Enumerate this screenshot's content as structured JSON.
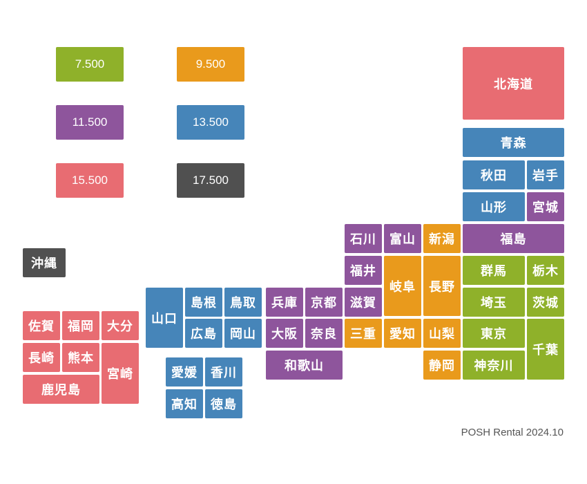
{
  "palette": {
    "green": "#8fb12a",
    "orange": "#e99a1c",
    "purple": "#8e559c",
    "blue": "#4685b9",
    "red": "#e86c72",
    "dark": "#505050"
  },
  "legend": [
    {
      "label": "7.500",
      "color": "green"
    },
    {
      "label": "9.500",
      "color": "orange"
    },
    {
      "label": "11.500",
      "color": "purple"
    },
    {
      "label": "13.500",
      "color": "blue"
    },
    {
      "label": "15.500",
      "color": "red"
    },
    {
      "label": "17.500",
      "color": "dark"
    }
  ],
  "prefectures": [
    {
      "name": "北海道",
      "color": "red"
    },
    {
      "name": "青森",
      "color": "blue"
    },
    {
      "name": "秋田",
      "color": "blue"
    },
    {
      "name": "岩手",
      "color": "blue"
    },
    {
      "name": "山形",
      "color": "blue"
    },
    {
      "name": "宮城",
      "color": "purple"
    },
    {
      "name": "石川",
      "color": "purple"
    },
    {
      "name": "富山",
      "color": "purple"
    },
    {
      "name": "新潟",
      "color": "orange"
    },
    {
      "name": "福島",
      "color": "purple"
    },
    {
      "name": "福井",
      "color": "purple"
    },
    {
      "name": "岐阜",
      "color": "orange"
    },
    {
      "name": "長野",
      "color": "orange"
    },
    {
      "name": "群馬",
      "color": "green"
    },
    {
      "name": "栃木",
      "color": "green"
    },
    {
      "name": "山口",
      "color": "blue"
    },
    {
      "name": "島根",
      "color": "blue"
    },
    {
      "name": "鳥取",
      "color": "blue"
    },
    {
      "name": "兵庫",
      "color": "purple"
    },
    {
      "name": "京都",
      "color": "purple"
    },
    {
      "name": "滋賀",
      "color": "purple"
    },
    {
      "name": "埼玉",
      "color": "green"
    },
    {
      "name": "茨城",
      "color": "green"
    },
    {
      "name": "広島",
      "color": "blue"
    },
    {
      "name": "岡山",
      "color": "blue"
    },
    {
      "name": "大阪",
      "color": "purple"
    },
    {
      "name": "奈良",
      "color": "purple"
    },
    {
      "name": "三重",
      "color": "orange"
    },
    {
      "name": "愛知",
      "color": "orange"
    },
    {
      "name": "山梨",
      "color": "orange"
    },
    {
      "name": "東京",
      "color": "green"
    },
    {
      "name": "千葉",
      "color": "green"
    },
    {
      "name": "和歌山",
      "color": "purple"
    },
    {
      "name": "静岡",
      "color": "orange"
    },
    {
      "name": "神奈川",
      "color": "green"
    },
    {
      "name": "愛媛",
      "color": "blue"
    },
    {
      "name": "香川",
      "color": "blue"
    },
    {
      "name": "高知",
      "color": "blue"
    },
    {
      "name": "徳島",
      "color": "blue"
    },
    {
      "name": "沖縄",
      "color": "dark"
    },
    {
      "name": "佐賀",
      "color": "red"
    },
    {
      "name": "福岡",
      "color": "red"
    },
    {
      "name": "大分",
      "color": "red"
    },
    {
      "name": "長崎",
      "color": "red"
    },
    {
      "name": "熊本",
      "color": "red"
    },
    {
      "name": "宮崎",
      "color": "red"
    },
    {
      "name": "鹿児島",
      "color": "red"
    }
  ],
  "credit": "POSH Rental 2024.10"
}
